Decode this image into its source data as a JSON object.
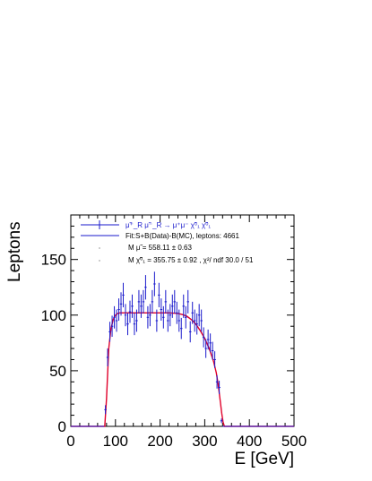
{
  "chart_data": {
    "type": "scatter",
    "xlabel": "E [GeV]",
    "ylabel": "Leptons",
    "xlim": [
      0,
      500
    ],
    "ylim": [
      0,
      190
    ],
    "x_ticks": [
      0,
      100,
      200,
      300,
      400,
      500
    ],
    "y_ticks": [
      0,
      50,
      100,
      150
    ],
    "grid": false,
    "legend_position": "top-left",
    "legend": {
      "data_label": "μ̃⁺_R μ̃⁻_R → μ⁺μ⁻ χ̃⁰₁ χ̃⁰₁",
      "fit_label": "Fit:S+B(Data)-B(MC), leptons: 4661",
      "mass_smuon": "M μ̃ =    558.11 ±  0.63",
      "mass_chi": "M χ̃⁰₁ =    355.75 ±  0.92 , χ²/ ndf 30.0 / 51"
    },
    "colors": {
      "data": "#1a1acc",
      "fit": "#e0002a"
    },
    "series": [
      {
        "name": "data",
        "x": [
          77.5,
          82.5,
          87.5,
          92.5,
          97.5,
          102.5,
          107.5,
          112.5,
          117.5,
          122.5,
          127.5,
          132.5,
          137.5,
          142.5,
          147.5,
          152.5,
          157.5,
          162.5,
          167.5,
          172.5,
          177.5,
          182.5,
          187.5,
          192.5,
          197.5,
          202.5,
          207.5,
          212.5,
          217.5,
          222.5,
          227.5,
          232.5,
          237.5,
          242.5,
          247.5,
          252.5,
          257.5,
          262.5,
          267.5,
          272.5,
          277.5,
          282.5,
          287.5,
          292.5,
          297.5,
          302.5,
          307.5,
          312.5,
          317.5,
          322.5,
          327.5,
          332.5,
          337.5,
          342.5
        ],
        "y": [
          15,
          62,
          85,
          90,
          98,
          95,
          105,
          110,
          118,
          100,
          92,
          103,
          108,
          92,
          95,
          112,
          108,
          112,
          125,
          98,
          100,
          112,
          128,
          95,
          118,
          105,
          98,
          112,
          95,
          100,
          108,
          112,
          102,
          95,
          88,
          108,
          98,
          112,
          85,
          102,
          95,
          92,
          100,
          95,
          80,
          70,
          78,
          75,
          68,
          60,
          40,
          35,
          5,
          0
        ],
        "err": [
          4,
          8,
          9,
          9.5,
          10,
          10,
          10,
          10.5,
          11,
          10,
          10,
          10,
          10.5,
          10,
          10,
          10.5,
          10.5,
          10.5,
          11,
          10,
          10,
          10.5,
          11,
          10,
          11,
          10,
          10,
          10.5,
          10,
          10,
          10.5,
          10.5,
          10,
          10,
          9.5,
          10.5,
          10,
          10.5,
          9.5,
          10,
          10,
          9.5,
          10,
          10,
          9,
          8.5,
          9,
          8.5,
          8,
          7.5,
          6,
          6,
          2,
          0
        ]
      },
      {
        "name": "fit",
        "x": [
          0,
          76,
          80,
          85,
          90,
          95,
          100,
          105,
          110,
          120,
          140,
          180,
          220,
          240,
          250,
          260,
          270,
          280,
          290,
          300,
          310,
          320,
          326,
          330,
          335,
          338,
          341,
          344,
          350,
          500
        ],
        "y": [
          0,
          0,
          25,
          70,
          88,
          96,
          100,
          101.5,
          102,
          102,
          102,
          102,
          102,
          101.5,
          100.5,
          99,
          96,
          92,
          86,
          79,
          70,
          58,
          48,
          38,
          22,
          12,
          4,
          0,
          0,
          0
        ]
      }
    ]
  }
}
